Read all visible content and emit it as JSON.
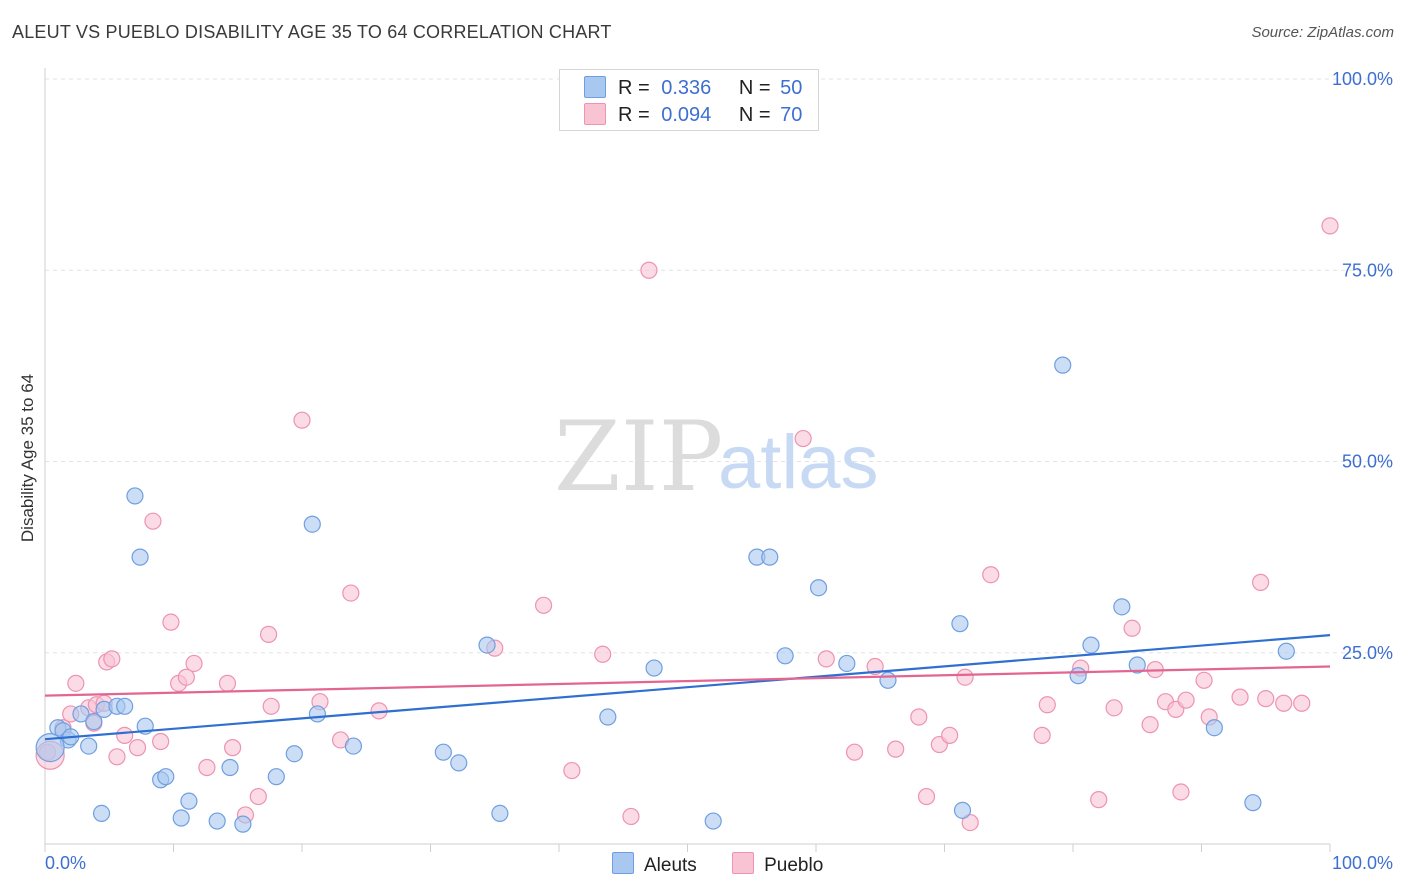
{
  "header": {
    "title": "ALEUT VS PUEBLO DISABILITY AGE 35 TO 64 CORRELATION CHART",
    "source": "Source: ZipAtlas.com"
  },
  "legend": {
    "aleut": {
      "r_label": "R =",
      "r_value": "0.336",
      "n_label": "N =",
      "n_value": "50"
    },
    "pueblo": {
      "r_label": "R =",
      "r_value": "0.094",
      "n_label": "N =",
      "n_value": "70"
    },
    "bottom": {
      "aleut": "Aleuts",
      "pueblo": "Pueblo"
    }
  },
  "watermark": {
    "zip": "ZIP",
    "atlas": "atlas"
  },
  "colors": {
    "aleut_fill": "#a9c8f0",
    "aleut_stroke": "#6f9fe0",
    "aleut_line": "#2f6fd0",
    "pueblo_fill": "#f8c3d3",
    "pueblo_stroke": "#ee93b0",
    "pueblo_line": "#e36592",
    "tick_blue": "#3d6fd0"
  },
  "chart_data": {
    "type": "scatter",
    "title": "ALEUT VS PUEBLO DISABILITY AGE 35 TO 64 CORRELATION CHART",
    "xlabel": "",
    "ylabel": "Disability Age 35 to 64",
    "xlim": [
      0,
      100
    ],
    "ylim": [
      0,
      100
    ],
    "x_tick_labels": [
      "0.0%",
      "100.0%"
    ],
    "y_ticks": [
      {
        "value": 25,
        "label": "25.0%"
      },
      {
        "value": 50,
        "label": "50.0%"
      },
      {
        "value": 75,
        "label": "75.0%"
      },
      {
        "value": 100,
        "label": "100.0%"
      }
    ],
    "series": [
      {
        "name": "Aleuts",
        "r": 0.336,
        "n": 50,
        "trend": [
          [
            0,
            13.7
          ],
          [
            100,
            27.3
          ]
        ],
        "points": [
          [
            1.0,
            15.2
          ],
          [
            1.4,
            14.8
          ],
          [
            1.8,
            13.6
          ],
          [
            2.0,
            14.0
          ],
          [
            2.8,
            17.0
          ],
          [
            3.4,
            12.8
          ],
          [
            3.8,
            16.0
          ],
          [
            4.4,
            4.0
          ],
          [
            4.6,
            17.6
          ],
          [
            5.6,
            18.0
          ],
          [
            6.2,
            18.0
          ],
          [
            7.0,
            45.5
          ],
          [
            7.4,
            37.5
          ],
          [
            7.8,
            15.4
          ],
          [
            9.0,
            8.4
          ],
          [
            9.4,
            8.8
          ],
          [
            10.6,
            3.4
          ],
          [
            11.2,
            5.6
          ],
          [
            13.4,
            3.0
          ],
          [
            14.4,
            10.0
          ],
          [
            15.4,
            2.6
          ],
          [
            18.0,
            8.8
          ],
          [
            19.4,
            11.8
          ],
          [
            20.8,
            41.8
          ],
          [
            21.2,
            17.0
          ],
          [
            24.0,
            12.8
          ],
          [
            31.0,
            12.0
          ],
          [
            32.2,
            10.6
          ],
          [
            35.4,
            4.0
          ],
          [
            34.4,
            26.0
          ],
          [
            43.8,
            16.6
          ],
          [
            47.4,
            23.0
          ],
          [
            52.0,
            3.0
          ],
          [
            55.4,
            37.5
          ],
          [
            56.4,
            37.5
          ],
          [
            57.6,
            24.6
          ],
          [
            60.2,
            33.5
          ],
          [
            62.4,
            23.6
          ],
          [
            65.6,
            21.4
          ],
          [
            71.2,
            28.8
          ],
          [
            71.4,
            4.4
          ],
          [
            79.2,
            62.6
          ],
          [
            80.4,
            22.0
          ],
          [
            81.4,
            26.0
          ],
          [
            83.8,
            31.0
          ],
          [
            85.0,
            23.4
          ],
          [
            91.0,
            15.2
          ],
          [
            96.6,
            25.2
          ],
          [
            94.0,
            5.4
          ],
          [
            0.4,
            12.6
          ]
        ]
      },
      {
        "name": "Pueblo",
        "r": 0.094,
        "n": 70,
        "trend": [
          [
            0,
            19.4
          ],
          [
            100,
            23.2
          ]
        ],
        "points": [
          [
            0.2,
            12.0
          ],
          [
            1.4,
            15.2
          ],
          [
            2.0,
            17.0
          ],
          [
            2.4,
            21.0
          ],
          [
            3.4,
            17.8
          ],
          [
            3.8,
            15.8
          ],
          [
            4.0,
            18.2
          ],
          [
            4.6,
            18.4
          ],
          [
            4.8,
            23.8
          ],
          [
            5.2,
            24.2
          ],
          [
            5.6,
            11.4
          ],
          [
            6.2,
            14.2
          ],
          [
            7.2,
            12.6
          ],
          [
            8.4,
            42.2
          ],
          [
            9.0,
            13.4
          ],
          [
            9.8,
            29.0
          ],
          [
            10.4,
            21.0
          ],
          [
            11.0,
            21.8
          ],
          [
            11.6,
            23.6
          ],
          [
            12.6,
            10.0
          ],
          [
            14.2,
            21.0
          ],
          [
            14.6,
            12.6
          ],
          [
            15.6,
            3.8
          ],
          [
            16.6,
            6.2
          ],
          [
            17.4,
            27.4
          ],
          [
            17.6,
            18.0
          ],
          [
            20.0,
            55.4
          ],
          [
            21.4,
            18.6
          ],
          [
            23.0,
            13.6
          ],
          [
            23.8,
            32.8
          ],
          [
            26.0,
            17.4
          ],
          [
            35.0,
            25.6
          ],
          [
            38.8,
            31.2
          ],
          [
            41.0,
            9.6
          ],
          [
            43.4,
            24.8
          ],
          [
            45.6,
            3.6
          ],
          [
            47.0,
            75.0
          ],
          [
            59.0,
            53.0
          ],
          [
            60.8,
            24.2
          ],
          [
            63.0,
            12.0
          ],
          [
            64.6,
            23.2
          ],
          [
            66.2,
            12.4
          ],
          [
            68.0,
            16.6
          ],
          [
            68.6,
            6.2
          ],
          [
            69.6,
            13.0
          ],
          [
            70.4,
            14.2
          ],
          [
            71.6,
            21.8
          ],
          [
            72.0,
            2.8
          ],
          [
            73.6,
            35.2
          ],
          [
            77.6,
            14.2
          ],
          [
            78.0,
            18.2
          ],
          [
            80.6,
            23.0
          ],
          [
            82.0,
            5.8
          ],
          [
            83.2,
            17.8
          ],
          [
            84.6,
            28.2
          ],
          [
            86.0,
            15.6
          ],
          [
            86.4,
            22.8
          ],
          [
            87.2,
            18.6
          ],
          [
            88.0,
            17.6
          ],
          [
            88.4,
            6.8
          ],
          [
            88.8,
            18.8
          ],
          [
            90.2,
            21.4
          ],
          [
            90.6,
            16.6
          ],
          [
            93.0,
            19.2
          ],
          [
            94.6,
            34.2
          ],
          [
            95.0,
            19.0
          ],
          [
            96.4,
            18.4
          ],
          [
            97.8,
            18.4
          ],
          [
            100.0,
            80.8
          ],
          [
            0.4,
            11.6
          ]
        ]
      }
    ]
  }
}
